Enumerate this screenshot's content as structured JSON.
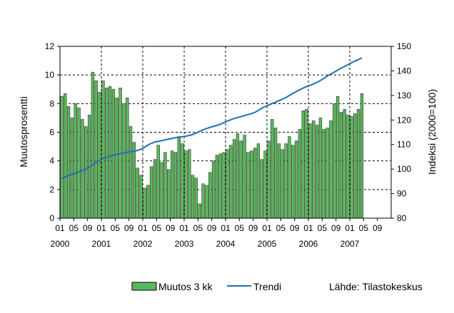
{
  "chart_data": {
    "type": "bar",
    "y_left": {
      "label": "Muutosprosentti",
      "min": 0,
      "max": 12,
      "step": 2,
      "ticks": [
        "0",
        "2",
        "4",
        "6",
        "8",
        "10",
        "12"
      ]
    },
    "y_right": {
      "label": "Indeksi (2000=100)",
      "min": 80,
      "max": 150,
      "step": 10,
      "ticks": [
        "80",
        "90",
        "100",
        "110",
        "120",
        "130",
        "140",
        "150"
      ]
    },
    "x_month_ticks": [
      "01",
      "05",
      "09",
      "01",
      "05",
      "09",
      "01",
      "05",
      "09",
      "01",
      "05",
      "09",
      "01",
      "05",
      "09",
      "01",
      "05",
      "09",
      "01",
      "05",
      "09",
      "01",
      "05",
      "09"
    ],
    "x_year_labels": [
      "2000",
      "2001",
      "2002",
      "2003",
      "2004",
      "2005",
      "2006",
      "2007"
    ],
    "grid": true,
    "legend_position": "bottom",
    "series": [
      {
        "name": "Muutos 3 kk",
        "type": "bar",
        "axis": "left",
        "color": "#5bb85b",
        "values": [
          8.5,
          8.7,
          7.8,
          7.0,
          8.0,
          7.7,
          6.9,
          6.4,
          7.2,
          10.2,
          9.6,
          8.8,
          9.6,
          9.1,
          9.2,
          9.0,
          8.4,
          9.1,
          8.0,
          8.4,
          6.4,
          5.3,
          3.5,
          3.0,
          2.1,
          2.3,
          3.6,
          4.1,
          5.1,
          3.9,
          4.6,
          3.4,
          4.7,
          4.6,
          5.7,
          5.2,
          4.7,
          4.8,
          3.0,
          2.8,
          1.0,
          2.4,
          2.3,
          3.2,
          4.0,
          4.4,
          4.5,
          4.6,
          4.8,
          5.1,
          5.5,
          5.9,
          5.4,
          5.8,
          4.6,
          4.7,
          4.9,
          5.2,
          4.1,
          4.7,
          5.4,
          6.9,
          6.3,
          5.2,
          4.8,
          5.2,
          5.7,
          5.1,
          5.4,
          6.2,
          7.5,
          7.6,
          6.6,
          6.8,
          6.5,
          7.0,
          6.2,
          6.3,
          6.8,
          8.0,
          8.5,
          7.4,
          7.6,
          7.2,
          7.1,
          7.3,
          7.6,
          8.7
        ]
      },
      {
        "name": "Trendi",
        "type": "line",
        "axis": "right",
        "color": "#1f6fb4",
        "values": [
          96.2,
          96.8,
          97.4,
          97.9,
          98.4,
          98.9,
          99.4,
          100.0,
          100.8,
          101.8,
          102.8,
          103.6,
          104.3,
          104.8,
          105.3,
          105.7,
          106.0,
          106.3,
          106.6,
          106.9,
          107.1,
          107.3,
          107.6,
          108.1,
          108.9,
          109.8,
          110.5,
          111.0,
          111.3,
          111.6,
          111.9,
          112.2,
          112.5,
          112.8,
          113.0,
          113.2,
          113.4,
          113.7,
          114.1,
          114.7,
          115.4,
          116.0,
          116.5,
          117.0,
          117.4,
          117.8,
          118.3,
          118.9,
          119.5,
          120.1,
          120.6,
          121.0,
          121.4,
          121.8,
          122.2,
          122.6,
          123.1,
          123.9,
          124.8,
          125.5,
          126.1,
          126.7,
          127.3,
          127.9,
          128.5,
          129.2,
          130.0,
          130.8,
          131.6,
          132.3,
          133.0,
          133.6,
          134.1,
          134.7,
          135.3,
          136.1,
          137.0,
          137.9,
          138.7,
          139.5,
          140.3,
          141.1,
          141.8,
          142.6,
          143.3,
          144.0,
          144.6,
          145.3
        ]
      }
    ]
  },
  "legend": {
    "bar_label": "Muutos 3 kk",
    "line_label": "Trendi"
  },
  "source_note": "Lähde: Tilastokeskus"
}
